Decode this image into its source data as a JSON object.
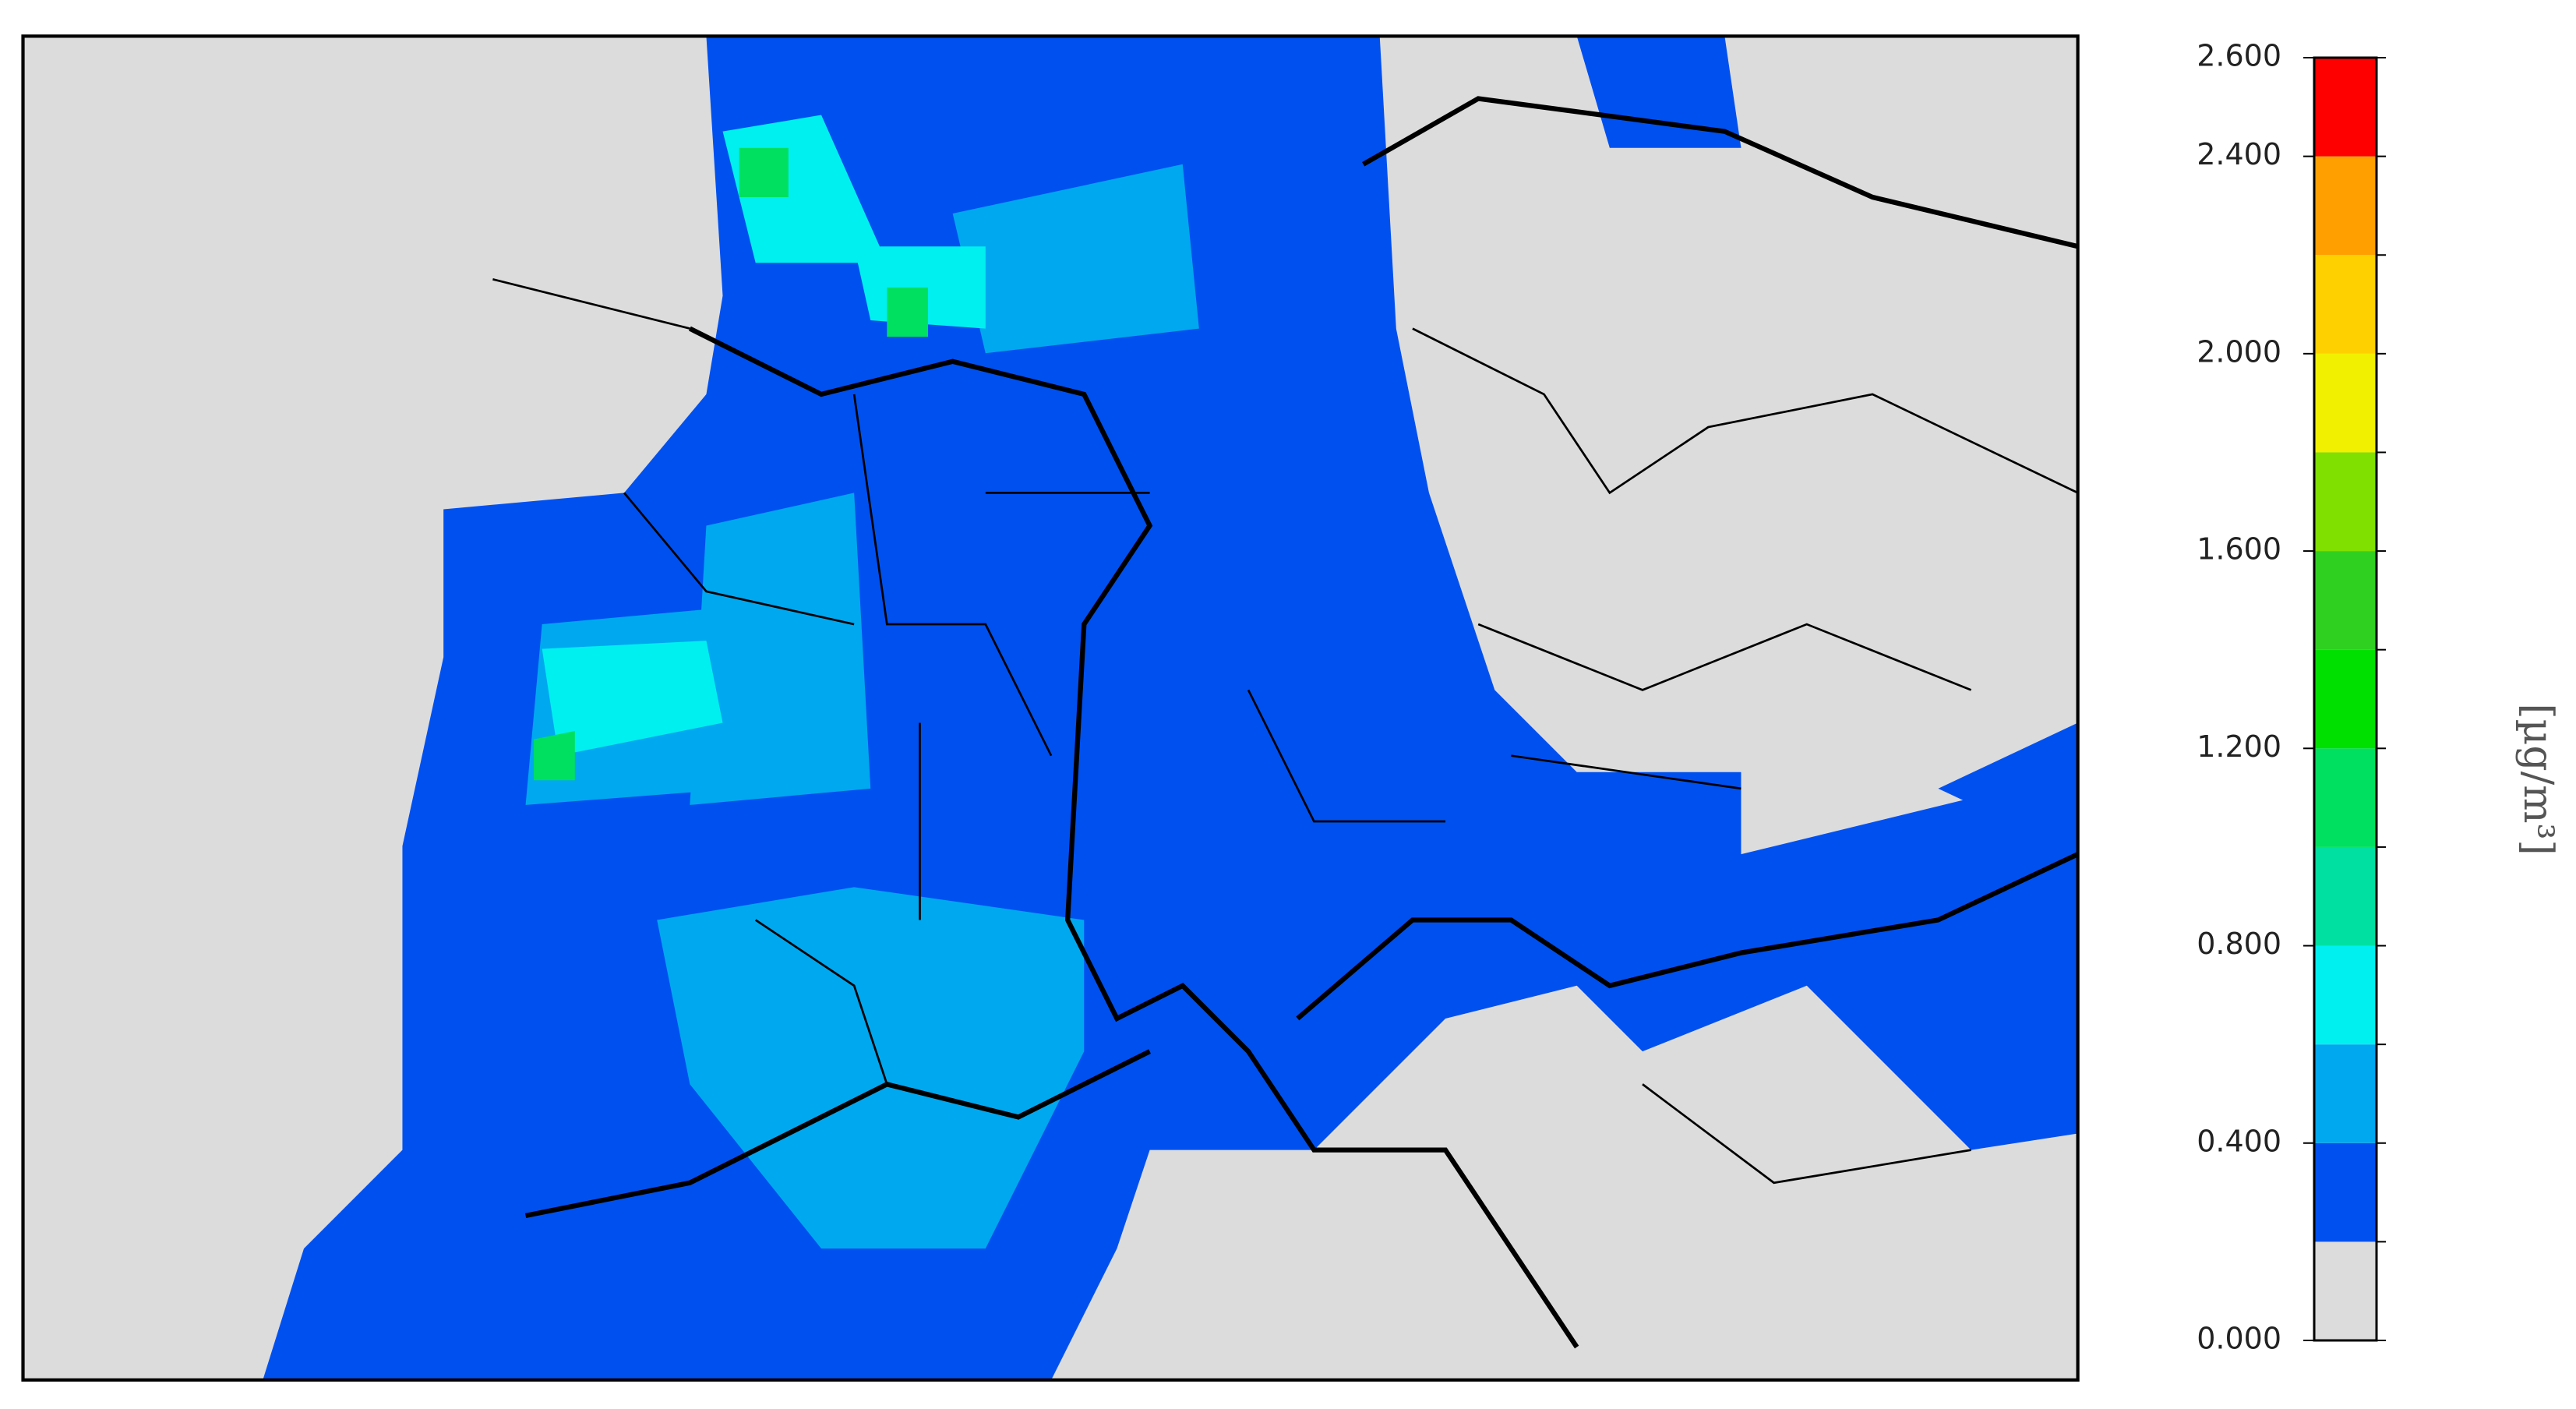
{
  "colorbar": {
    "unit_label": "[µg/m³]",
    "bins": [
      0,
      0.2,
      0.4,
      0.6,
      0.8,
      1.0,
      1.2,
      1.4,
      1.6,
      1.8,
      2.0,
      2.2,
      2.4,
      2.6
    ],
    "colors": [
      "#dcdcdc",
      "#0050f0",
      "#00a8f0",
      "#00f0f0",
      "#00e0a0",
      "#00e060",
      "#00e000",
      "#30d020",
      "#80e000",
      "#f0f000",
      "#ffd000",
      "#ffa000",
      "#ff6000"
    ],
    "top_color": "#ff0000",
    "ticks": [
      {
        "value": 0,
        "label": "0.000"
      },
      {
        "value": 0.4,
        "label": "0.400"
      },
      {
        "value": 0.8,
        "label": "0.800"
      },
      {
        "value": 1.2,
        "label": "1.200"
      },
      {
        "value": 1.6,
        "label": "1.600"
      },
      {
        "value": 2.0,
        "label": "2.000"
      },
      {
        "value": 2.4,
        "label": "2.400"
      },
      {
        "value": 2.6,
        "label": "2.600"
      }
    ]
  }
}
